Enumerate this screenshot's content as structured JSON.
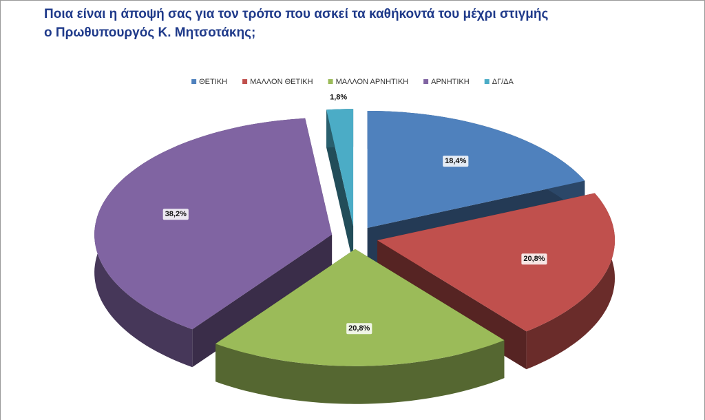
{
  "chart_data": {
    "type": "pie3d",
    "title": [
      "Ποια είναι η άποψή σας για τον τρόπο που ασκεί τα καθήκοντά του μέχρι στιγμής",
      "ο Πρωθυπουργός Κ. Μητσοτάκης;"
    ],
    "categories": [
      "ΘΕΤΙΚΗ",
      "ΜΑΛΛΟΝ ΘΕΤΙΚΗ",
      "ΜΑΛΛΟΝ ΑΡΝΗΤΙΚΗ",
      "ΑΡΝΗΤΙΚΗ",
      "ΔΓ/ΔΑ"
    ],
    "values": [
      18.4,
      20.8,
      20.8,
      38.2,
      1.8
    ],
    "value_labels": [
      "18,4%",
      "20,8%",
      "20,8%",
      "38,2%",
      "1,8%"
    ],
    "colors": [
      "#4f81bd",
      "#c0504d",
      "#9bbb59",
      "#8064a2",
      "#4bacc6"
    ],
    "legend": "top"
  }
}
